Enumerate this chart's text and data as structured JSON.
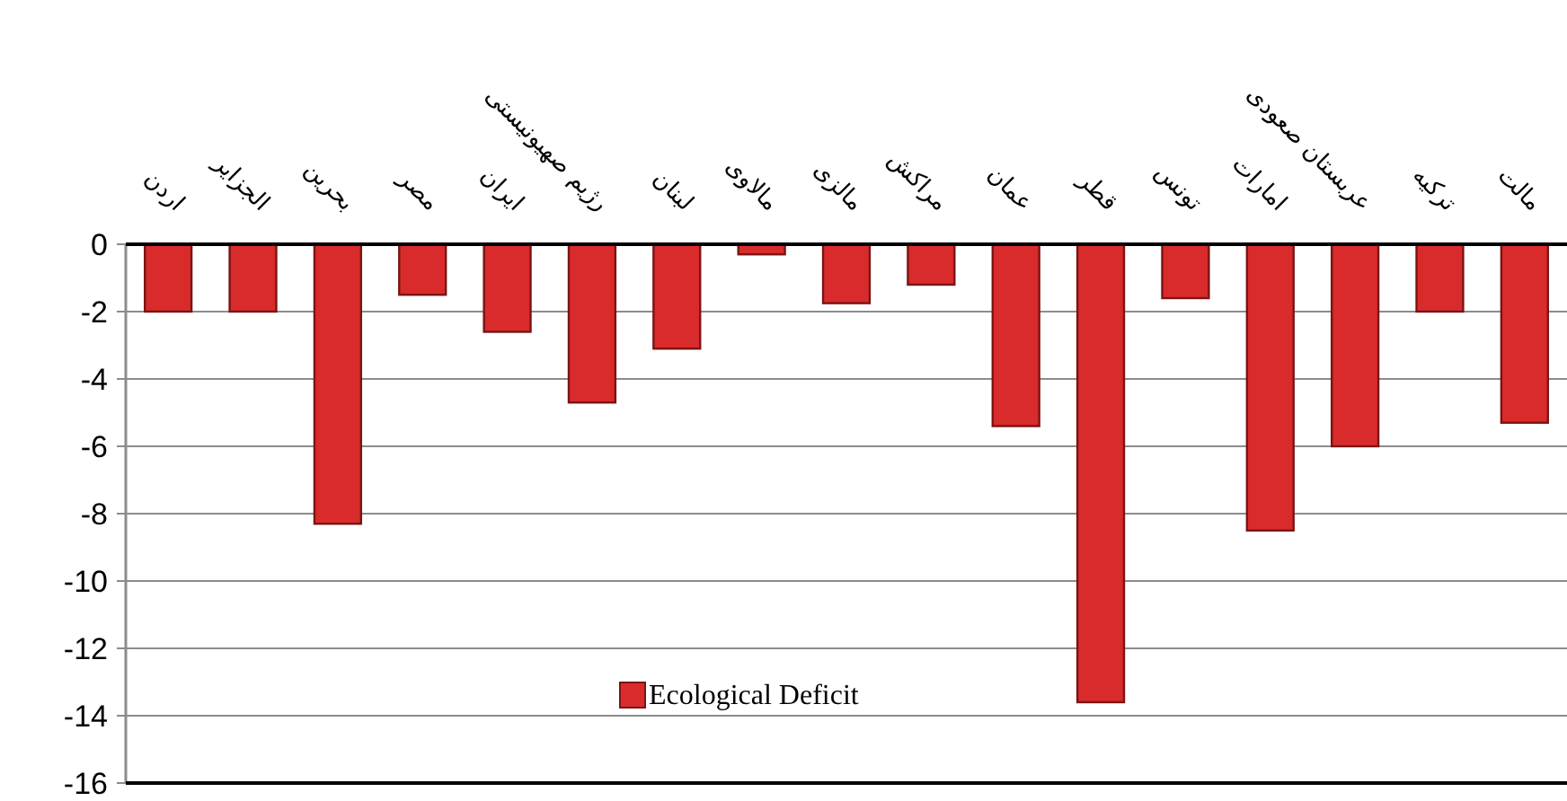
{
  "chart_data": {
    "type": "bar",
    "categories": [
      "اردن",
      "الجزایر",
      "بحرین",
      "مصر",
      "ایران",
      "رژیم صهیونیستی",
      "لبنان",
      "مالاوی",
      "مالزی",
      "مراکش",
      "عمان",
      "قطر",
      "تونس",
      "امارات",
      "عربستان صعودی",
      "ترکیه",
      "مالت"
    ],
    "series": [
      {
        "name": "Ecological Deficit",
        "color": "#d92b2b",
        "values": [
          -2.0,
          -2.0,
          -8.3,
          -1.5,
          -2.6,
          -4.7,
          -3.1,
          -0.3,
          -1.75,
          -1.2,
          -5.4,
          -13.6,
          -1.6,
          -8.5,
          -6.0,
          -2.0,
          -5.3
        ]
      }
    ],
    "ylim": [
      -16,
      0
    ],
    "yticks": [
      0,
      -2,
      -4,
      -6,
      -8,
      -10,
      -12,
      -14,
      -16
    ],
    "grid": "y",
    "legend": "bottom"
  }
}
